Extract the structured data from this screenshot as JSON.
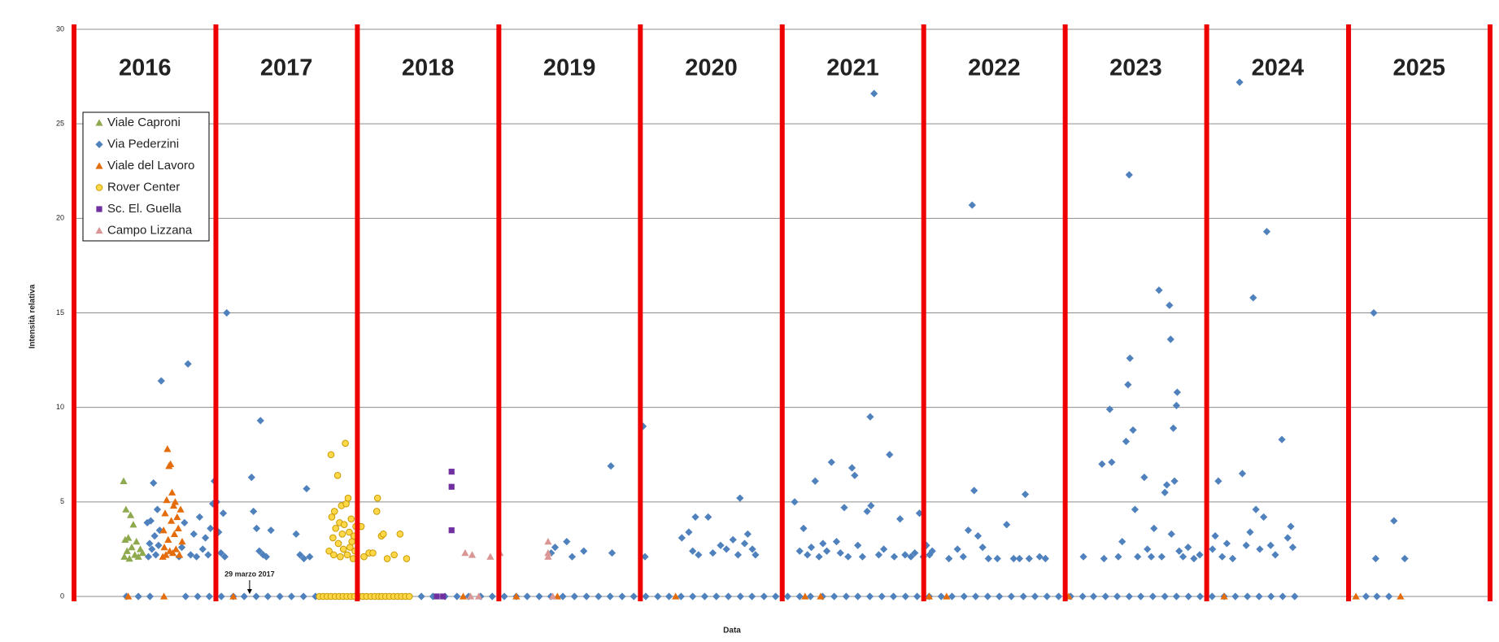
{
  "chart_data": {
    "type": "scatter",
    "x_label": "Data",
    "y_label": "Intensità relativa",
    "xlim": [
      "2016-01-01",
      "2026-01-01"
    ],
    "ylim": [
      0,
      30
    ],
    "yticks": [
      0,
      5,
      10,
      15,
      20,
      25,
      30
    ],
    "grid": true,
    "legend": "upper left",
    "year_lines": [
      "2016-01-01",
      "2017-01-01",
      "2018-01-01",
      "2019-01-01",
      "2020-01-01",
      "2021-01-01",
      "2022-01-01",
      "2023-01-01",
      "2024-01-01",
      "2025-01-01",
      "2026-01-01"
    ],
    "year_line_color": "#ee0000",
    "year_labels": [
      {
        "x": "2016-07-02",
        "label": "2016"
      },
      {
        "x": "2017-07-02",
        "label": "2017"
      },
      {
        "x": "2018-07-02",
        "label": "2018"
      },
      {
        "x": "2019-07-02",
        "label": "2019"
      },
      {
        "x": "2020-07-02",
        "label": "2020"
      },
      {
        "x": "2021-07-02",
        "label": "2021"
      },
      {
        "x": "2022-07-02",
        "label": "2022"
      },
      {
        "x": "2023-07-02",
        "label": "2023"
      },
      {
        "x": "2024-07-02",
        "label": "2024"
      },
      {
        "x": "2025-07-02",
        "label": "2025"
      }
    ],
    "annotations": [
      {
        "x": "2017-03-29",
        "text": "29 marzo 2017"
      }
    ],
    "series": [
      {
        "name": "Viale Caproni",
        "color": "#8faa4e",
        "marker": "triangle",
        "x": [
          "2016-05-08",
          "2016-05-10",
          "2016-05-12",
          "2016-05-14",
          "2016-05-17",
          "2016-05-20",
          "2016-05-23",
          "2016-05-26",
          "2016-05-29",
          "2016-06-02",
          "2016-06-06",
          "2016-06-10",
          "2016-06-15",
          "2016-06-20",
          "2016-06-26"
        ],
        "values": [
          6.1,
          2.1,
          3,
          4.6,
          2.4,
          3.1,
          2,
          4.3,
          2.6,
          3.8,
          2.2,
          2.9,
          2.1,
          2.5,
          2.3
        ]
      },
      {
        "name": "Via Pederzini",
        "color": "#4f81bd",
        "marker": "diamond",
        "x": [
          "2016-07-08",
          "2016-07-11",
          "2016-07-14",
          "2016-07-17",
          "2016-07-20",
          "2016-07-24",
          "2016-07-27",
          "2016-07-30",
          "2016-08-03",
          "2016-08-06",
          "2016-08-09",
          "2016-08-13",
          "2016-09-28",
          "2016-10-05",
          "2016-10-12",
          "2016-10-21",
          "2016-10-28",
          "2016-11-05",
          "2016-11-12",
          "2016-11-20",
          "2016-11-28",
          "2016-12-05",
          "2016-12-12",
          "2016-12-18",
          "2016-12-24",
          "2016-12-28",
          "2017-01-03",
          "2017-01-08",
          "2017-01-14",
          "2017-01-20",
          "2017-01-24",
          "2017-01-29",
          "2017-04-03",
          "2017-04-08",
          "2017-04-16",
          "2017-04-23",
          "2017-04-26",
          "2017-05-03",
          "2017-05-11",
          "2017-05-23",
          "2017-07-27",
          "2017-08-06",
          "2017-08-16",
          "2017-08-23",
          "2017-08-31",
          "2019-05-16",
          "2019-05-26",
          "2019-06-25",
          "2019-07-09",
          "2019-08-08",
          "2019-10-17",
          "2019-10-20",
          "2020-01-08",
          "2020-01-13",
          "2020-04-17",
          "2020-05-05",
          "2020-05-15",
          "2020-05-22",
          "2020-05-30",
          "2020-06-24",
          "2020-07-06",
          "2020-07-26",
          "2020-08-10",
          "2020-08-27",
          "2020-09-09",
          "2020-09-14",
          "2020-09-26",
          "2020-10-04",
          "2020-10-16",
          "2020-10-24",
          "2021-02-02",
          "2021-02-15",
          "2021-02-25",
          "2021-03-07",
          "2021-03-17",
          "2021-03-27",
          "2021-04-06",
          "2021-04-16",
          "2021-04-26",
          "2021-05-08",
          "2021-05-21",
          "2021-05-31",
          "2021-06-10",
          "2021-06-20",
          "2021-06-30",
          "2021-07-07",
          "2021-07-15",
          "2021-07-27",
          "2021-08-08",
          "2021-08-16",
          "2021-08-18",
          "2021-08-26",
          "2021-09-07",
          "2021-09-20",
          "2021-10-05",
          "2021-10-17",
          "2021-11-01",
          "2021-11-14",
          "2021-11-29",
          "2021-12-09",
          "2021-12-21",
          "2021-12-31",
          "2022-01-08",
          "2022-01-16",
          "2022-01-23",
          "2022-03-07",
          "2022-03-29",
          "2022-04-13",
          "2022-04-26",
          "2022-05-06",
          "2022-05-11",
          "2022-05-21",
          "2022-06-02",
          "2022-06-17",
          "2022-07-10",
          "2022-08-03",
          "2022-08-21",
          "2022-09-05",
          "2022-09-20",
          "2022-09-30",
          "2022-10-27",
          "2022-11-11",
          "2023-02-17",
          "2023-04-06",
          "2023-04-11",
          "2023-04-26",
          "2023-05-01",
          "2023-05-18",
          "2023-05-28",
          "2023-06-07",
          "2023-06-12",
          "2023-06-15",
          "2023-06-17",
          "2023-06-25",
          "2023-06-30",
          "2023-07-07",
          "2023-07-24",
          "2023-08-01",
          "2023-08-11",
          "2023-08-18",
          "2023-08-31",
          "2023-09-07",
          "2023-09-15",
          "2023-09-20",
          "2023-09-27",
          "2023-09-30",
          "2023-10-02",
          "2023-10-07",
          "2023-10-10",
          "2023-10-15",
          "2023-10-17",
          "2023-10-22",
          "2023-11-01",
          "2023-11-14",
          "2023-11-29",
          "2023-12-14",
          "2024-01-16",
          "2024-01-23",
          "2024-01-31",
          "2024-02-10",
          "2024-02-22",
          "2024-03-08",
          "2024-03-26",
          "2024-04-02",
          "2024-04-12",
          "2024-04-22",
          "2024-04-30",
          "2024-05-07",
          "2024-05-17",
          "2024-05-27",
          "2024-06-04",
          "2024-06-14",
          "2024-06-26",
          "2024-07-13",
          "2024-07-28",
          "2024-08-05",
          "2024-08-10",
          "2025-03-07",
          "2025-03-12",
          "2025-04-28",
          "2025-05-26",
          "2016-05-15",
          "2016-06-15",
          "2016-07-15",
          "2016-10-15",
          "2016-11-15",
          "2016-12-15",
          "2017-01-15",
          "2017-02-15",
          "2017-03-15",
          "2017-04-15",
          "2017-05-15",
          "2017-06-15",
          "2017-07-15",
          "2017-08-15",
          "2017-09-15",
          "2018-06-15",
          "2018-07-15",
          "2018-08-15",
          "2018-09-15",
          "2018-10-15",
          "2018-11-15",
          "2018-12-15",
          "2019-01-15",
          "2019-02-15",
          "2019-03-15",
          "2019-04-15",
          "2019-05-15",
          "2019-06-15",
          "2019-07-15",
          "2019-08-15",
          "2019-09-15",
          "2019-10-15",
          "2019-11-15",
          "2019-12-15",
          "2020-01-15",
          "2020-02-15",
          "2020-03-15",
          "2020-04-15",
          "2020-05-15",
          "2020-06-15",
          "2020-07-15",
          "2020-08-15",
          "2020-09-15",
          "2020-10-15",
          "2020-11-15",
          "2020-12-15",
          "2021-01-15",
          "2021-02-15",
          "2021-03-15",
          "2021-04-15",
          "2021-05-15",
          "2021-06-15",
          "2021-07-15",
          "2021-08-15",
          "2021-09-15",
          "2021-10-15",
          "2021-11-15",
          "2021-12-15",
          "2022-01-15",
          "2022-02-15",
          "2022-03-15",
          "2022-04-15",
          "2022-05-15",
          "2022-06-15",
          "2022-07-15",
          "2022-08-15",
          "2022-09-15",
          "2022-10-15",
          "2022-11-15",
          "2022-12-15",
          "2023-01-15",
          "2023-02-15",
          "2023-03-15",
          "2023-04-15",
          "2023-05-15",
          "2023-06-15",
          "2023-07-15",
          "2023-08-15",
          "2023-09-15",
          "2023-10-15",
          "2023-11-15",
          "2023-12-15",
          "2024-01-15",
          "2024-02-15",
          "2024-03-15",
          "2024-04-15",
          "2024-05-15",
          "2024-06-15",
          "2024-07-15",
          "2024-08-15",
          "2025-02-15",
          "2025-03-15",
          "2025-04-15"
        ],
        "values": [
          3.9,
          2.1,
          2.8,
          4,
          2.5,
          6,
          3.2,
          2.2,
          4.6,
          2.7,
          3.5,
          11.4,
          2.1,
          2.6,
          3.9,
          12.3,
          2.2,
          3.3,
          2.1,
          4.2,
          2.5,
          3.1,
          2.2,
          3.6,
          4.9,
          6.1,
          5,
          3.4,
          2.3,
          4.4,
          2.1,
          15,
          6.3,
          4.5,
          3.6,
          2.4,
          9.3,
          2.2,
          2.1,
          3.5,
          3.3,
          2.2,
          2,
          5.7,
          2.1,
          2.3,
          2.6,
          2.9,
          2.1,
          2.4,
          6.9,
          2.3,
          9,
          2.1,
          3.1,
          3.4,
          2.4,
          4.2,
          2.2,
          4.2,
          2.3,
          2.7,
          2.5,
          3,
          2.2,
          5.2,
          2.8,
          3.3,
          2.5,
          2.2,
          5,
          2.4,
          3.6,
          2.2,
          2.6,
          6.1,
          2.1,
          2.8,
          2.4,
          7.1,
          2.9,
          2.3,
          4.7,
          2.1,
          6.8,
          6.4,
          2.7,
          2.1,
          4.5,
          9.5,
          4.8,
          26.6,
          2.2,
          2.5,
          7.5,
          2.1,
          4.1,
          2.2,
          2.1,
          2.3,
          4.4,
          2.1,
          2.7,
          2.2,
          2.4,
          2,
          2.5,
          2.1,
          3.5,
          20.7,
          5.6,
          3.2,
          2.6,
          2,
          2,
          3.8,
          2,
          2,
          5.4,
          2,
          2.1,
          2,
          2.1,
          7,
          2,
          9.9,
          7.1,
          2.1,
          2.9,
          8.2,
          11.2,
          22.3,
          12.6,
          8.8,
          4.6,
          2.1,
          6.3,
          2.5,
          2.1,
          3.6,
          16.2,
          2.1,
          5.5,
          5.9,
          15.4,
          13.6,
          3.3,
          8.9,
          6.1,
          10.1,
          10.8,
          2.4,
          2.1,
          2.6,
          2,
          2.2,
          2.5,
          3.2,
          6.1,
          2.1,
          2.8,
          2,
          27.2,
          6.5,
          2.7,
          3.4,
          15.8,
          4.6,
          2.5,
          4.2,
          19.3,
          2.7,
          2.2,
          8.3,
          3.1,
          3.7,
          2.6,
          15,
          2,
          4,
          2,
          0,
          0,
          0,
          0,
          0,
          0,
          0,
          0,
          0,
          0,
          0,
          0,
          0,
          0,
          0,
          0,
          0,
          0,
          0,
          0,
          0,
          0,
          0,
          0,
          0,
          0,
          0,
          0,
          0,
          0,
          0,
          0,
          0,
          0,
          0,
          0,
          0,
          0,
          0,
          0,
          0,
          0,
          0,
          0,
          0,
          0,
          0,
          0,
          0,
          0,
          0,
          0,
          0,
          0,
          0,
          0,
          0,
          0,
          0,
          0,
          0,
          0,
          0,
          0,
          0,
          0,
          0,
          0,
          0,
          0,
          0,
          0,
          0,
          0,
          0,
          0,
          0,
          0,
          0,
          0,
          0,
          0,
          0,
          0,
          0,
          0,
          0,
          0,
          0,
          0,
          0,
          0,
          0
        ]
      },
      {
        "name": "Viale del Lavoro",
        "color": "#e46c0a",
        "marker": "triangle",
        "x": [
          "2016-08-17",
          "2016-08-19",
          "2016-08-21",
          "2016-08-23",
          "2016-08-25",
          "2016-08-27",
          "2016-08-29",
          "2016-08-31",
          "2016-09-02",
          "2016-09-04",
          "2016-09-06",
          "2016-09-08",
          "2016-09-10",
          "2016-09-12",
          "2016-09-14",
          "2016-09-16",
          "2016-09-18",
          "2016-09-20",
          "2016-09-23",
          "2016-09-26",
          "2016-09-29",
          "2016-10-02",
          "2016-10-06",
          "2016-05-20",
          "2016-08-20",
          "2017-02-15",
          "2018-10-01",
          "2019-02-15",
          "2019-06-01",
          "2020-04-01",
          "2021-03-01",
          "2021-04-10",
          "2022-01-15",
          "2022-03-01",
          "2023-01-10",
          "2024-02-15",
          "2025-01-20",
          "2025-05-15"
        ],
        "values": [
          2.1,
          3.5,
          2.6,
          4.4,
          2.2,
          5.1,
          7.8,
          3,
          6.9,
          2.4,
          7,
          4,
          5.5,
          2.3,
          4.8,
          3.3,
          5,
          2.5,
          4.2,
          3.6,
          2.2,
          4.6,
          2.9,
          0,
          0,
          0,
          0,
          0,
          0,
          0,
          0,
          0,
          0,
          0,
          0,
          0,
          0,
          0
        ]
      },
      {
        "name": "Rover Center",
        "color": "#ffd84a",
        "marker": "circle",
        "x": [
          "2017-10-20",
          "2017-10-25",
          "2017-10-27",
          "2017-10-30",
          "2017-11-01",
          "2017-11-03",
          "2017-11-06",
          "2017-11-11",
          "2017-11-13",
          "2017-11-16",
          "2017-11-18",
          "2017-11-21",
          "2017-11-23",
          "2017-11-26",
          "2017-11-28",
          "2017-12-01",
          "2017-12-03",
          "2017-12-06",
          "2017-12-08",
          "2017-12-11",
          "2017-12-13",
          "2017-12-16",
          "2017-12-18",
          "2017-12-21",
          "2017-12-23",
          "2017-12-26",
          "2017-12-28",
          "2018-01-11",
          "2018-01-18",
          "2018-01-31",
          "2018-02-10",
          "2018-02-20",
          "2018-02-22",
          "2018-03-04",
          "2018-03-09",
          "2018-03-19",
          "2018-04-06",
          "2018-04-21",
          "2018-05-08",
          "2017-09-25",
          "2017-10-05",
          "2017-10-15",
          "2017-10-25",
          "2017-11-05",
          "2017-11-15",
          "2017-11-25",
          "2017-12-05",
          "2017-12-15",
          "2017-12-25",
          "2018-01-05",
          "2018-01-15",
          "2018-01-25",
          "2018-02-05",
          "2018-02-15",
          "2018-02-25",
          "2018-03-05",
          "2018-03-15",
          "2018-03-25",
          "2018-04-05",
          "2018-04-15",
          "2018-04-25",
          "2018-05-05",
          "2018-05-15"
        ],
        "values": [
          2.4,
          7.5,
          4.2,
          3.1,
          2.2,
          4.5,
          3.6,
          6.4,
          2.8,
          3.9,
          2.1,
          4.8,
          3.3,
          2.5,
          3.8,
          8.1,
          4.9,
          2.2,
          5.2,
          3.4,
          2.6,
          4.1,
          2.9,
          2,
          3.2,
          2.4,
          3.7,
          3.7,
          2.1,
          2.3,
          2.3,
          4.5,
          5.2,
          3.2,
          3.3,
          2,
          2.2,
          3.3,
          2,
          0,
          0,
          0,
          0,
          0,
          0,
          0,
          0,
          0,
          0,
          0,
          0,
          0,
          0,
          0,
          0,
          0,
          0,
          0,
          0,
          0,
          0,
          0,
          0
        ]
      },
      {
        "name": "Sc. El. Guella",
        "color": "#7030a0",
        "marker": "square",
        "x": [
          "2018-09-01",
          "2018-09-01",
          "2018-09-01",
          "2018-07-25",
          "2018-08-10"
        ],
        "values": [
          6.6,
          5.8,
          3.5,
          0,
          0
        ]
      },
      {
        "name": "Campo Lizzana",
        "color": "#d99694",
        "marker": "triangle",
        "x": [
          "2018-10-06",
          "2018-10-24",
          "2018-12-10",
          "2019-01-04",
          "2019-05-08",
          "2019-05-08",
          "2019-05-08",
          "2018-10-20",
          "2018-11-10",
          "2019-05-20"
        ],
        "values": [
          2.3,
          2.2,
          2.1,
          2.3,
          2.9,
          2.3,
          2.1,
          0,
          0,
          0
        ]
      }
    ]
  }
}
